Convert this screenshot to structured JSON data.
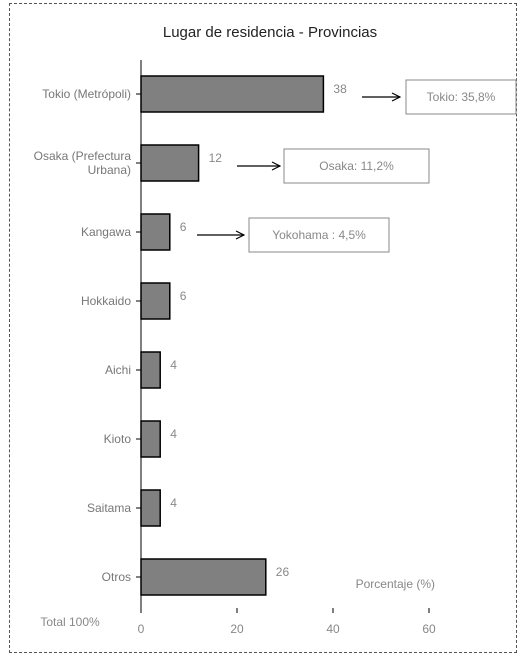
{
  "chart_data": {
    "type": "bar",
    "orientation": "horizontal",
    "title": "Lugar de residencia - Provincias",
    "categories": [
      "Tokio (Metrópoli)",
      "Osaka (Prefectura Urbana)",
      "Kangawa",
      "Hokkaido",
      "Aichi",
      "Kioto",
      "Saitama",
      "Otros"
    ],
    "category_lines": [
      [
        "Tokio (Metrópoli)"
      ],
      [
        "Osaka (Prefectura",
        "Urbana)"
      ],
      [
        "Kangawa"
      ],
      [
        "Hokkaido"
      ],
      [
        "Aichi"
      ],
      [
        "Kioto"
      ],
      [
        "Saitama"
      ],
      [
        "Otros"
      ]
    ],
    "values": [
      38,
      12,
      6,
      6,
      4,
      4,
      4,
      26
    ],
    "xlim": [
      0,
      60
    ],
    "xticks": [
      0,
      20,
      40,
      60
    ],
    "xlabel": "Porcentaje (%)",
    "total_label": "Total 100%",
    "grid": false,
    "bar_color": "#808080",
    "callouts": [
      {
        "category_index": 0,
        "text": "Tokio: 35,8%"
      },
      {
        "category_index": 1,
        "text": "Osaka: 11,2%"
      },
      {
        "category_index": 2,
        "text": "Yokohama : 4,5%"
      }
    ]
  }
}
